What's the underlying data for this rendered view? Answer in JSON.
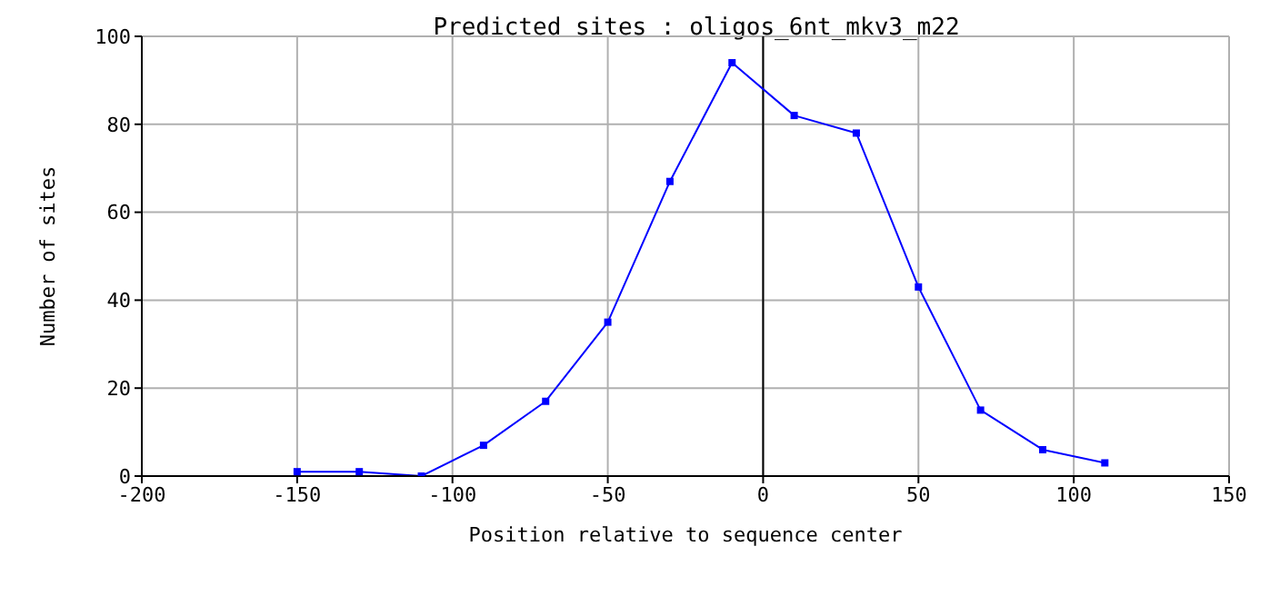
{
  "chart_data": {
    "type": "line",
    "title": "Predicted sites : oligos_6nt_mkv3_m22",
    "xlabel": "Position relative to sequence center",
    "ylabel": "Number of sites",
    "x": [
      -150,
      -130,
      -110,
      -90,
      -70,
      -50,
      -30,
      -10,
      10,
      30,
      50,
      70,
      90,
      110
    ],
    "series": [
      {
        "color": "#0000ff",
        "values": [
          1,
          1,
          0,
          7,
          17,
          35,
          67,
          94,
          82,
          78,
          43,
          15,
          6,
          3
        ]
      }
    ],
    "xlim": [
      -200,
      150
    ],
    "xticks": [
      -200,
      -150,
      -100,
      -50,
      0,
      50,
      100,
      150
    ],
    "ylim": [
      0,
      100
    ],
    "yticks": [
      0,
      20,
      40,
      60,
      80,
      100
    ],
    "grid": true,
    "marker": "square",
    "line_style": "solid",
    "ref_lines": [
      {
        "axis": "x",
        "value": 0,
        "color": "#000000"
      }
    ]
  }
}
